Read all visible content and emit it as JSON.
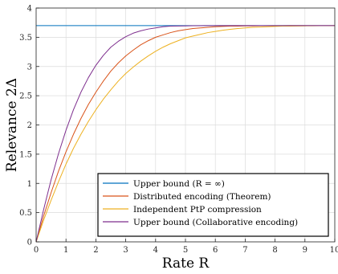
{
  "chart_data": {
    "type": "line",
    "xlabel": "Rate R",
    "ylabel": "Relevance 2Δ",
    "xlim": [
      0,
      10
    ],
    "ylim": [
      0,
      4
    ],
    "x_ticks": [
      "0",
      "1",
      "2",
      "3",
      "4",
      "5",
      "6",
      "7",
      "8",
      "9",
      "10"
    ],
    "y_ticks": [
      "0",
      "0.5",
      "1",
      "1.5",
      "2",
      "2.5",
      "3",
      "3.5",
      "4"
    ],
    "grid": true,
    "legend_position": "bottom-right",
    "x": [
      0,
      0.25,
      0.5,
      0.75,
      1,
      1.25,
      1.5,
      1.75,
      2,
      2.25,
      2.5,
      2.75,
      3,
      3.25,
      3.5,
      3.75,
      4,
      4.25,
      4.5,
      4.75,
      5,
      5.25,
      5.5,
      5.75,
      6,
      6.25,
      6.5,
      6.75,
      7,
      7.25,
      7.5,
      7.75,
      8,
      8.25,
      8.5,
      8.75,
      9,
      9.25,
      9.5,
      9.75,
      10
    ],
    "series": [
      {
        "name": "Upper bound (R = ∞)",
        "color": "#0072BD",
        "y": [
          3.7,
          3.7,
          3.7,
          3.7,
          3.7,
          3.7,
          3.7,
          3.7,
          3.7,
          3.7,
          3.7,
          3.7,
          3.7,
          3.7,
          3.7,
          3.7,
          3.7,
          3.7,
          3.7,
          3.7,
          3.7,
          3.7,
          3.7,
          3.7,
          3.7,
          3.7,
          3.7,
          3.7,
          3.7,
          3.7,
          3.7,
          3.7,
          3.7,
          3.7,
          3.7,
          3.7,
          3.7,
          3.7,
          3.7,
          3.7,
          3.7
        ]
      },
      {
        "name": "Distributed encoding (Theorem)",
        "color": "#D95319",
        "y": [
          0,
          0.44,
          0.84,
          1.21,
          1.54,
          1.84,
          2.11,
          2.35,
          2.56,
          2.75,
          2.92,
          3.06,
          3.18,
          3.28,
          3.37,
          3.44,
          3.5,
          3.54,
          3.58,
          3.61,
          3.63,
          3.65,
          3.66,
          3.67,
          3.68,
          3.685,
          3.69,
          3.69,
          3.695,
          3.695,
          3.697,
          3.697,
          3.698,
          3.698,
          3.699,
          3.699,
          3.699,
          3.7,
          3.7,
          3.7,
          3.7
        ]
      },
      {
        "name": "Independent PtP compression",
        "color": "#EDB120",
        "y": [
          0,
          0.37,
          0.71,
          1.03,
          1.33,
          1.6,
          1.84,
          2.06,
          2.26,
          2.44,
          2.6,
          2.75,
          2.88,
          2.99,
          3.09,
          3.18,
          3.26,
          3.33,
          3.39,
          3.44,
          3.49,
          3.52,
          3.55,
          3.58,
          3.6,
          3.62,
          3.635,
          3.65,
          3.66,
          3.67,
          3.675,
          3.68,
          3.685,
          3.69,
          3.69,
          3.693,
          3.695,
          3.696,
          3.697,
          3.698,
          3.7
        ]
      },
      {
        "name": "Upper bound (Collaborative encoding)",
        "color": "#7E2F8E",
        "y": [
          0,
          0.55,
          1.06,
          1.51,
          1.91,
          2.26,
          2.56,
          2.81,
          3.02,
          3.19,
          3.33,
          3.43,
          3.51,
          3.57,
          3.61,
          3.64,
          3.66,
          3.68,
          3.69,
          3.693,
          3.695,
          3.697,
          3.698,
          3.699,
          3.7,
          3.7,
          3.7,
          3.7,
          3.7,
          3.7,
          3.7,
          3.7,
          3.7,
          3.7,
          3.7,
          3.7,
          3.7,
          3.7,
          3.7,
          3.7,
          3.7
        ]
      }
    ]
  }
}
